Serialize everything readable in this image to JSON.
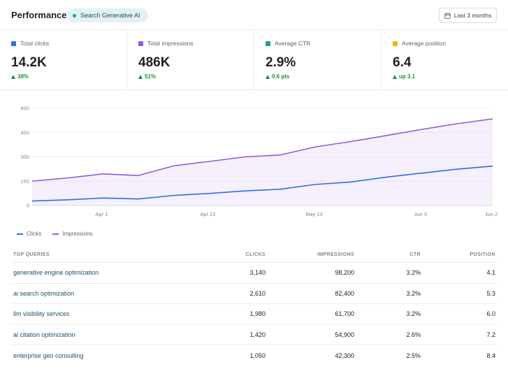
{
  "header": {
    "title": "Performance",
    "badge": "Search Generative AI",
    "date_range": "Last 3 months"
  },
  "metrics": [
    {
      "label": "Total clicks",
      "value": "14.2K",
      "delta": "38%",
      "color": "#2f6fe0"
    },
    {
      "label": "Total impressions",
      "value": "486K",
      "delta": "51%",
      "color": "#8e5ce0"
    },
    {
      "label": "Average CTR",
      "value": "2.9%",
      "delta": "0.6 pts",
      "color": "#2b9c96"
    },
    {
      "label": "Average position",
      "value": "6.4",
      "delta": "up 3.1",
      "color": "#f2b400"
    }
  ],
  "chart_data": {
    "type": "line",
    "x": [
      0,
      1,
      2,
      3,
      4,
      5,
      6,
      7,
      8,
      9,
      10,
      11,
      12,
      13
    ],
    "x_tick_labels": [
      "Apr 1",
      "Apr 22",
      "May 13",
      "Jun 3",
      "Jun 2"
    ],
    "y_ticks": [
      0,
      150,
      300,
      450,
      600
    ],
    "ylim": [
      0,
      600
    ],
    "grid": true,
    "legend": "bottom-left",
    "series": [
      {
        "name": "Clicks",
        "color": "#2f6fe0",
        "values": [
          28,
          35,
          46,
          40,
          62,
          74,
          90,
          100,
          130,
          145,
          175,
          200,
          224,
          243
        ]
      },
      {
        "name": "Impressions",
        "color": "#8e5ce0",
        "values": [
          150,
          170,
          195,
          185,
          245,
          272,
          300,
          312,
          362,
          395,
          432,
          470,
          505,
          535
        ]
      }
    ]
  },
  "table": {
    "headers": {
      "query": "TOP QUERIES",
      "clicks": "CLICKS",
      "impressions": "IMPRESSIONS",
      "ctr": "CTR",
      "position": "POSITION"
    },
    "rows": [
      {
        "query": "generative engine optimization",
        "clicks": "3,140",
        "impressions": "98,200",
        "ctr": "3.2%",
        "position": "4.1"
      },
      {
        "query": "ai search optimization",
        "clicks": "2,610",
        "impressions": "82,400",
        "ctr": "3.2%",
        "position": "5.3"
      },
      {
        "query": "llm visibility services",
        "clicks": "1,980",
        "impressions": "61,700",
        "ctr": "3.2%",
        "position": "6.0"
      },
      {
        "query": "ai citation optimization",
        "clicks": "1,420",
        "impressions": "54,900",
        "ctr": "2.6%",
        "position": "7.2"
      },
      {
        "query": "enterprise geo consulting",
        "clicks": "1,050",
        "impressions": "42,300",
        "ctr": "2.5%",
        "position": "8.4"
      }
    ]
  }
}
